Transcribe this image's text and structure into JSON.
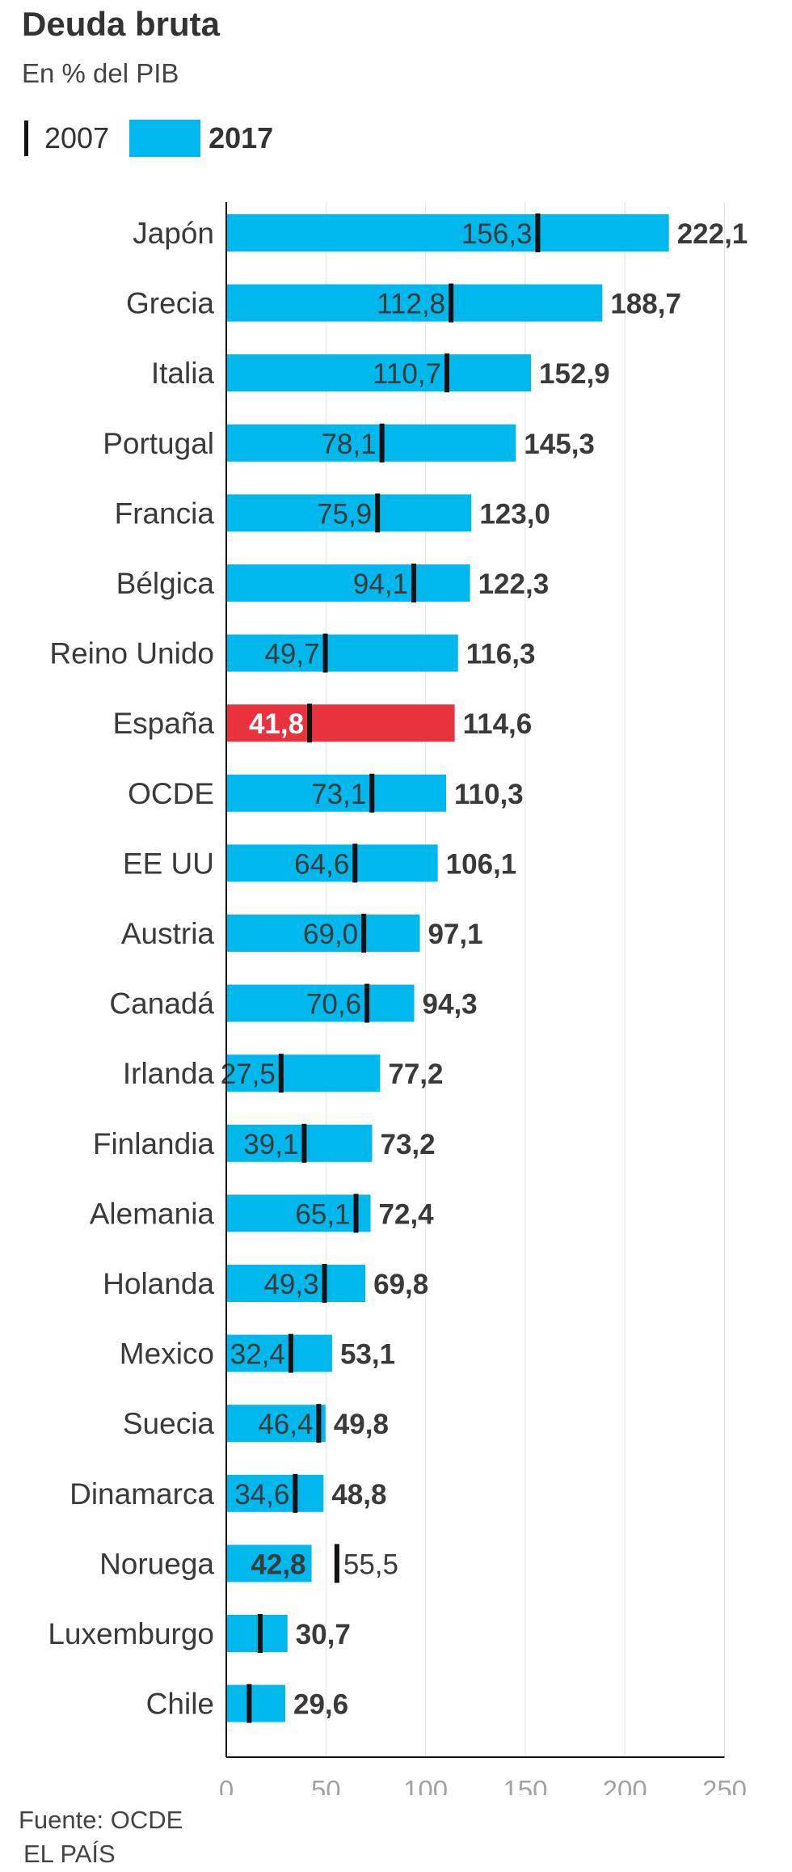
{
  "header": {
    "title": "Deuda bruta",
    "subtitle": "En % del PIB"
  },
  "legend": {
    "label_2007": "2007",
    "label_2017": "2017"
  },
  "footer": {
    "source": "Fuente: OCDE",
    "brand": "EL PAÍS"
  },
  "colors": {
    "bar": "#00b8ec",
    "highlight": "#e8333f",
    "marker": "#111111",
    "text": "#3a3a3a"
  },
  "chart_data": {
    "type": "bar",
    "orientation": "horizontal",
    "title": "Deuda bruta",
    "subtitle": "En % del PIB",
    "xlim": [
      0,
      250
    ],
    "x_ticks": [
      0,
      50,
      100,
      150,
      200,
      250
    ],
    "x_tick_labels": [
      "0",
      "50",
      "100",
      "150",
      "200",
      "250"
    ],
    "categories": [
      "Japón",
      "Grecia",
      "Italia",
      "Portugal",
      "Francia",
      "Bélgica",
      "Reino Unido",
      "España",
      "OCDE",
      "EE UU",
      "Austria",
      "Canadá",
      "Irlanda",
      "Finlandia",
      "Alemania",
      "Holanda",
      "Mexico",
      "Suecia",
      "Dinamarca",
      "Noruega",
      "Luxemburgo",
      "Chile"
    ],
    "series": [
      {
        "name": "2017",
        "values": [
          222.1,
          188.7,
          152.9,
          145.3,
          123.0,
          122.3,
          116.3,
          114.6,
          110.3,
          106.1,
          97.1,
          94.3,
          77.2,
          73.2,
          72.4,
          69.8,
          53.1,
          49.8,
          48.8,
          42.8,
          30.7,
          29.6
        ],
        "labels": [
          "222,1",
          "188,7",
          "152,9",
          "145,3",
          "123,0",
          "122,3",
          "116,3",
          "114,6",
          "110,3",
          "106,1",
          "97,1",
          "94,3",
          "77,2",
          "73,2",
          "72,4",
          "69,8",
          "53,1",
          "49,8",
          "48,8",
          "42,8",
          "30,7",
          "29,6"
        ]
      },
      {
        "name": "2007",
        "values": [
          156.3,
          112.8,
          110.7,
          78.1,
          75.9,
          94.1,
          49.7,
          41.8,
          73.1,
          64.6,
          69.0,
          70.6,
          27.5,
          39.1,
          65.1,
          49.3,
          32.4,
          46.4,
          34.6,
          55.5,
          17.0,
          11.5
        ],
        "labels": [
          "156,3",
          "112,8",
          "110,7",
          "78,1",
          "75,9",
          "94,1",
          "49,7",
          "41,8",
          "73,1",
          "64,6",
          "69,0",
          "70,6",
          "27,5",
          "39,1",
          "65,1",
          "49,3",
          "32,4",
          "46,4",
          "34,6",
          "55,5",
          "",
          ""
        ]
      }
    ],
    "highlight_category": "España",
    "grid": true
  }
}
